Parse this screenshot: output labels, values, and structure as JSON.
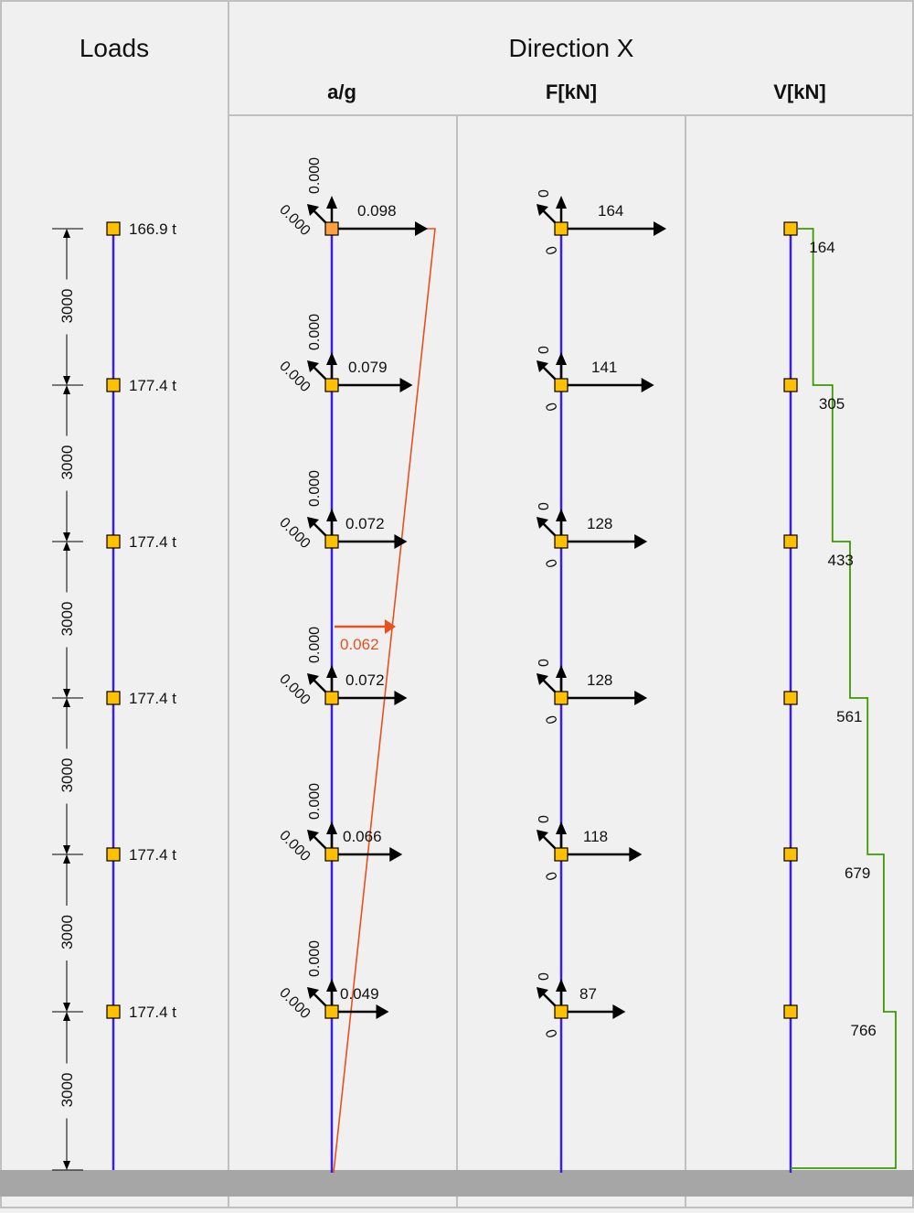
{
  "headers": {
    "loads": "Loads",
    "direction": "Direction X",
    "ag": "a/g",
    "f": "F[kN]",
    "v": "V[kN]"
  },
  "colors": {
    "background": "#f0f0f0",
    "column": "#3a1ee0",
    "node": "#ffc000",
    "node_top_ag": "#ffa040",
    "spectrum": "#e85020",
    "shear": "#3c9a00",
    "ground": "#a6a6a6",
    "divider": "#c0c0c0"
  },
  "storey_heights": [
    "3000",
    "3000",
    "3000",
    "3000",
    "3000",
    "3000"
  ],
  "nodes": [
    {
      "load": "166.9 t",
      "ag": "0.098",
      "ag_side": "0.000",
      "ag_up": "0.000",
      "f": "164",
      "f_side": "0",
      "f_up": "0",
      "v": "164"
    },
    {
      "load": "177.4 t",
      "ag": "0.079",
      "ag_side": "0.000",
      "ag_up": "0.000",
      "f": "141",
      "f_side": "0",
      "f_up": "0",
      "v": "305"
    },
    {
      "load": "177.4 t",
      "ag": "0.072",
      "ag_side": "0.000",
      "ag_up": "0.000",
      "f": "128",
      "f_side": "0",
      "f_up": "0",
      "v": "433"
    },
    {
      "load": "177.4 t",
      "ag": "0.072",
      "ag_side": "0.000",
      "ag_up": "0.000",
      "f": "128",
      "f_side": "0",
      "f_up": "0",
      "v": "561"
    },
    {
      "load": "177.4 t",
      "ag": "0.066",
      "ag_side": "0.000",
      "ag_up": "0.000",
      "f": "118",
      "f_side": "0",
      "f_up": "0",
      "v": "679"
    },
    {
      "load": "177.4 t",
      "ag": "0.049",
      "ag_side": "0.000",
      "ag_up": "0.000",
      "f": "87",
      "f_side": "0",
      "f_up": "0",
      "v": "766"
    }
  ],
  "spectrum_label": "0.062",
  "spectrum_value": 0.062
}
